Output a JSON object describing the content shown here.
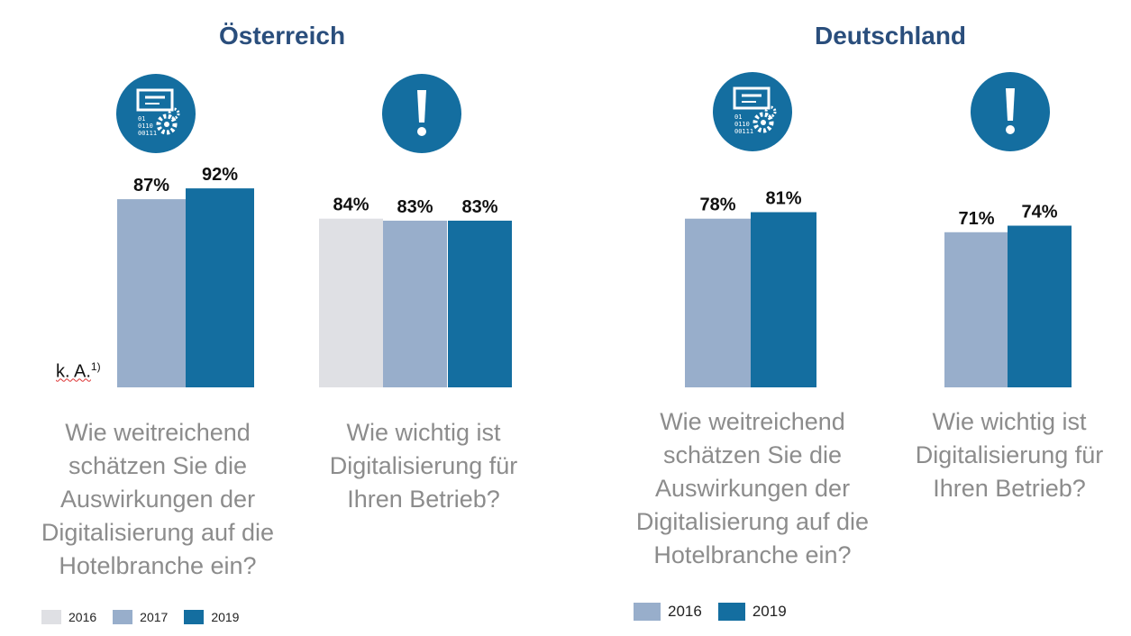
{
  "colors": {
    "c2016": "#dfe0e4",
    "c2017": "#98aecb",
    "c2019": "#146ea0",
    "title": "#2a4e7c",
    "question": "#8c8c8c"
  },
  "icons": [
    "digitalization-gears-icon",
    "exclamation-icon",
    "digitalization-gears-icon",
    "exclamation-icon"
  ],
  "panels": {
    "austria": {
      "title": "Österreich",
      "q1": [
        "Wie weitreichend",
        "schätzen Sie die",
        "Auswirkungen der",
        "Digitalisierung auf die",
        "Hotelbranche ein?"
      ],
      "q2": [
        "Wie wichtig ist",
        "Digitalisierung für",
        "Ihren Betrieb?"
      ],
      "note": "k. A.",
      "note_sup": "1)",
      "legend": [
        "2016",
        "2017",
        "2019"
      ]
    },
    "germany": {
      "title": "Deutschland",
      "q1": [
        "Wie weitreichend",
        "schätzen Sie die",
        "Auswirkungen der",
        "Digitalisierung auf die",
        "Hotelbranche ein?"
      ],
      "q2": [
        "Wie wichtig ist",
        "Digitalisierung für",
        "Ihren Betrieb?"
      ],
      "legend": [
        "2016",
        "2019"
      ]
    }
  },
  "chart_data": [
    {
      "type": "bar",
      "title": "Österreich",
      "categories": [
        "Wie weitreichend schätzen Sie die Auswirkungen der Digitalisierung auf die Hotelbranche ein?"
      ],
      "series": [
        {
          "name": "2017",
          "values": [
            87
          ]
        },
        {
          "name": "2019",
          "values": [
            92
          ]
        }
      ],
      "unit": "%",
      "ylim": [
        0,
        100
      ]
    },
    {
      "type": "bar",
      "title": "Österreich",
      "categories": [
        "Wie wichtig ist Digitalisierung für Ihren Betrieb?"
      ],
      "series": [
        {
          "name": "2016",
          "values": [
            84
          ]
        },
        {
          "name": "2017",
          "values": [
            83
          ]
        },
        {
          "name": "2019",
          "values": [
            83
          ]
        }
      ],
      "unit": "%",
      "ylim": [
        0,
        100
      ]
    },
    {
      "type": "bar",
      "title": "Deutschland",
      "categories": [
        "Wie weitreichend schätzen Sie die Auswirkungen der Digitalisierung auf die Hotelbranche ein?"
      ],
      "series": [
        {
          "name": "2016",
          "values": [
            78
          ]
        },
        {
          "name": "2019",
          "values": [
            81
          ]
        }
      ],
      "unit": "%",
      "ylim": [
        0,
        100
      ]
    },
    {
      "type": "bar",
      "title": "Deutschland",
      "categories": [
        "Wie wichtig ist Digitalisierung für Ihren Betrieb?"
      ],
      "series": [
        {
          "name": "2016",
          "values": [
            71
          ]
        },
        {
          "name": "2019",
          "values": [
            74
          ]
        }
      ],
      "unit": "%",
      "ylim": [
        0,
        100
      ]
    }
  ]
}
